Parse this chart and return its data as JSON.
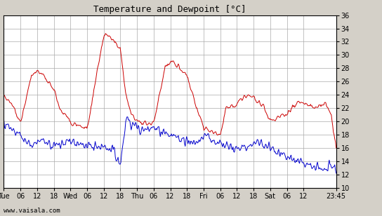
{
  "title": "Temperature and Dewpoint [°C]",
  "watermark": "www.vaisala.com",
  "ylim": [
    10,
    36
  ],
  "yticks": [
    10,
    12,
    14,
    16,
    18,
    20,
    22,
    24,
    26,
    28,
    30,
    32,
    34,
    36
  ],
  "xtick_labels": [
    "Tue",
    "06",
    "12",
    "18",
    "Wed",
    "06",
    "12",
    "18",
    "Thu",
    "06",
    "12",
    "18",
    "Fri",
    "06",
    "12",
    "18",
    "Sat",
    "06",
    "12",
    "23:45"
  ],
  "xtick_positions": [
    0,
    6,
    12,
    18,
    24,
    30,
    36,
    42,
    48,
    54,
    60,
    66,
    72,
    78,
    84,
    90,
    96,
    102,
    108,
    119.75
  ],
  "xlim": [
    0,
    119.75
  ],
  "temp_color": "#cc0000",
  "dewp_color": "#0000cc",
  "bg_color": "#d4d0c8",
  "plot_bg_color": "#ffffff",
  "grid_color": "#aaaaaa",
  "title_fontsize": 9,
  "tick_fontsize": 7,
  "watermark_fontsize": 6.5,
  "figsize": [
    5.44,
    3.08
  ],
  "dpi": 100,
  "temp_keypoints_x": [
    0,
    4,
    6,
    10,
    12,
    14,
    16,
    18,
    20,
    24,
    26,
    30,
    36,
    38,
    40,
    42,
    44,
    46,
    48,
    50,
    54,
    58,
    60,
    62,
    63,
    64,
    66,
    68,
    72,
    74,
    78,
    80,
    84,
    86,
    88,
    90,
    92,
    94,
    96,
    98,
    100,
    102,
    104,
    106,
    108,
    110,
    112,
    114,
    116,
    118,
    119.75
  ],
  "temp_keypoints_y": [
    24,
    22,
    20,
    27,
    27.5,
    27,
    26,
    25,
    22,
    20,
    19.5,
    19,
    33,
    33,
    32,
    31,
    24,
    21,
    20,
    19.5,
    20,
    28,
    29,
    29,
    28.5,
    27.5,
    27,
    24,
    19,
    18.5,
    18,
    22,
    22.5,
    23.5,
    24,
    23.5,
    23,
    22,
    20,
    20.5,
    21,
    21,
    22,
    23,
    23,
    22.5,
    22,
    22.5,
    23,
    21,
    16
  ],
  "dewp_keypoints_x": [
    0,
    4,
    6,
    10,
    14,
    18,
    24,
    28,
    36,
    40,
    42,
    44,
    46,
    50,
    54,
    56,
    60,
    64,
    66,
    70,
    72,
    76,
    80,
    84,
    88,
    92,
    96,
    100,
    104,
    108,
    114,
    119.75
  ],
  "dewp_keypoints_y": [
    19.5,
    18.5,
    17.5,
    16.5,
    17,
    16.5,
    17,
    16.5,
    16,
    15.5,
    13.5,
    20,
    19.5,
    19,
    19,
    18.5,
    18,
    17.5,
    17,
    17,
    18,
    17,
    16.5,
    16,
    16,
    17,
    16,
    15,
    14.5,
    13.5,
    13,
    13
  ]
}
